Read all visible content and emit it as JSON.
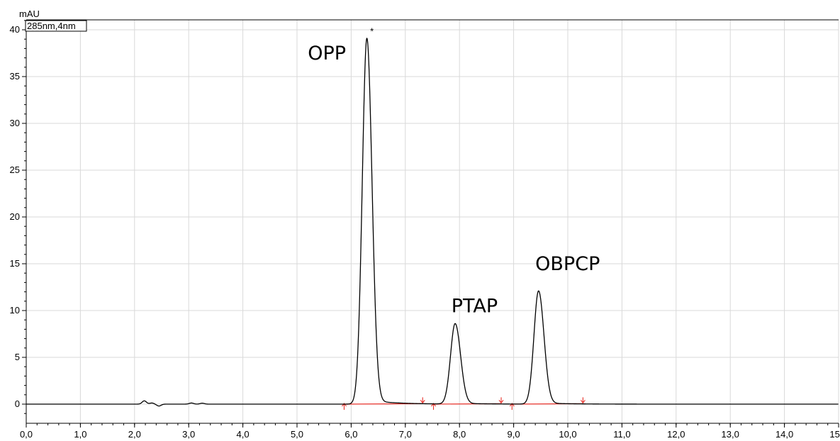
{
  "chart_data": {
    "type": "line",
    "y_unit": "mAU",
    "channel_label": "285nm,4nm",
    "xlim": [
      0,
      15
    ],
    "ylim": [
      -2,
      41
    ],
    "x_ticks": [
      0,
      1,
      2,
      3,
      4,
      5,
      6,
      7,
      8,
      9,
      10,
      11,
      12,
      13,
      14,
      15
    ],
    "x_tick_labels": [
      "0,0",
      "1,0",
      "2,0",
      "3,0",
      "4,0",
      "5,0",
      "6,0",
      "7,0",
      "8,0",
      "9,0",
      "10,0",
      "11,0",
      "12,0",
      "13,0",
      "14,0",
      "15,0"
    ],
    "y_ticks": [
      0,
      5,
      10,
      15,
      20,
      25,
      30,
      35,
      40
    ],
    "y_tick_labels": [
      "0",
      "5",
      "10",
      "15",
      "20",
      "25",
      "30",
      "35",
      "40"
    ],
    "grid": true,
    "series": [
      {
        "color": "#000000",
        "peaks": [
          {
            "name": "OPP",
            "rt": 6.29,
            "height": 39.1
          },
          {
            "name": "PTAP",
            "rt": 7.92,
            "height": 8.6
          },
          {
            "name": "OBPCP",
            "rt": 9.46,
            "height": 12.1
          }
        ],
        "minor_features": [
          {
            "rt": 2.18,
            "height": 0.35
          },
          {
            "rt": 2.32,
            "height": 0.12
          },
          {
            "rt": 2.45,
            "height": -0.2
          },
          {
            "rt": 3.05,
            "height": 0.12
          },
          {
            "rt": 3.25,
            "height": 0.1
          }
        ]
      }
    ],
    "annotations": [
      {
        "text": "OPP",
        "x": 5.2,
        "y": 36.8
      },
      {
        "text": "PTAP",
        "x": 7.85,
        "y": 9.8
      },
      {
        "text": "OBPCP",
        "x": 9.4,
        "y": 14.3
      },
      {
        "text": "*",
        "x": 6.35,
        "y": 39.5
      }
    ],
    "integration_baselines": [
      {
        "start": 5.87,
        "end": 7.32,
        "color": "#e8322b"
      },
      {
        "start": 7.52,
        "end": 8.77,
        "color": "#e8322b"
      },
      {
        "start": 8.97,
        "end": 10.28,
        "color": "#e8322b"
      }
    ]
  }
}
